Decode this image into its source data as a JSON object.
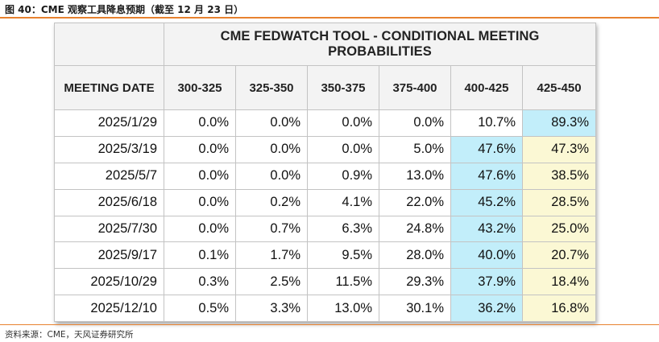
{
  "figure": {
    "title": "图 40：CME 观察工具降息预期（截至 12 月 23 日）",
    "source": "资料来源：CME，天风证券研究所"
  },
  "colors": {
    "accent_rule": "#e8822f",
    "highlight_max": "#c2eefa",
    "highlight_second": "#fbf8d4",
    "header_bg": "#f3f3f3"
  },
  "table": {
    "super_header": "CME FEDWATCH TOOL - CONDITIONAL MEETING PROBABILITIES",
    "first_col_header": "MEETING DATE",
    "columns": [
      "300-325",
      "325-350",
      "350-375",
      "375-400",
      "400-425",
      "425-450"
    ],
    "rows": [
      {
        "date": "2025/1/29",
        "values": [
          "0.0%",
          "0.0%",
          "0.0%",
          "0.0%",
          "10.7%",
          "89.3%"
        ],
        "highlight": [
          "",
          "",
          "",
          "",
          "",
          "cyan"
        ]
      },
      {
        "date": "2025/3/19",
        "values": [
          "0.0%",
          "0.0%",
          "0.0%",
          "5.0%",
          "47.6%",
          "47.3%"
        ],
        "highlight": [
          "",
          "",
          "",
          "",
          "cyan",
          "yellow"
        ]
      },
      {
        "date": "2025/5/7",
        "values": [
          "0.0%",
          "0.0%",
          "0.9%",
          "13.0%",
          "47.6%",
          "38.5%"
        ],
        "highlight": [
          "",
          "",
          "",
          "",
          "cyan",
          "yellow"
        ]
      },
      {
        "date": "2025/6/18",
        "values": [
          "0.0%",
          "0.2%",
          "4.1%",
          "22.0%",
          "45.2%",
          "28.5%"
        ],
        "highlight": [
          "",
          "",
          "",
          "",
          "cyan",
          "yellow"
        ]
      },
      {
        "date": "2025/7/30",
        "values": [
          "0.0%",
          "0.7%",
          "6.3%",
          "24.8%",
          "43.2%",
          "25.0%"
        ],
        "highlight": [
          "",
          "",
          "",
          "",
          "cyan",
          "yellow"
        ]
      },
      {
        "date": "2025/9/17",
        "values": [
          "0.1%",
          "1.7%",
          "9.5%",
          "28.0%",
          "40.0%",
          "20.7%"
        ],
        "highlight": [
          "",
          "",
          "",
          "",
          "cyan",
          "yellow"
        ]
      },
      {
        "date": "2025/10/29",
        "values": [
          "0.3%",
          "2.5%",
          "11.5%",
          "29.3%",
          "37.9%",
          "18.4%"
        ],
        "highlight": [
          "",
          "",
          "",
          "",
          "cyan",
          "yellow"
        ]
      },
      {
        "date": "2025/12/10",
        "values": [
          "0.5%",
          "3.3%",
          "13.0%",
          "30.1%",
          "36.2%",
          "16.8%"
        ],
        "highlight": [
          "",
          "",
          "",
          "",
          "cyan",
          "yellow"
        ]
      }
    ]
  }
}
